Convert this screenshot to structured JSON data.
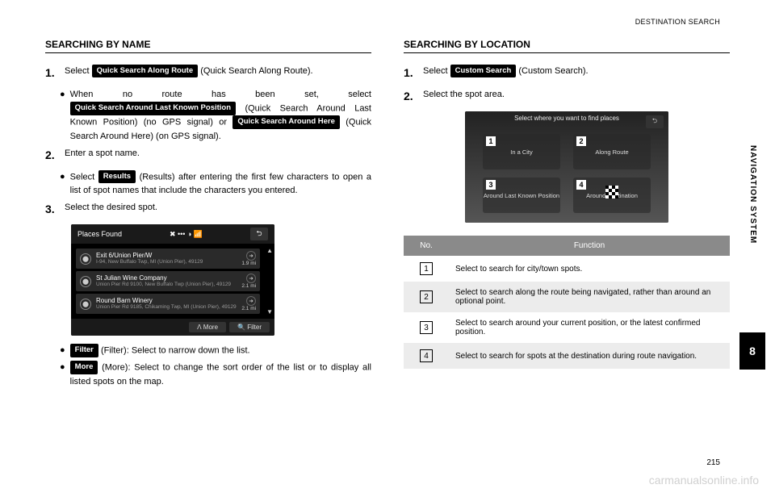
{
  "header": {
    "section": "DESTINATION SEARCH"
  },
  "side": {
    "label": "NAVIGATION SYSTEM",
    "tab": "8"
  },
  "page_number": "215",
  "watermark": "carmanualsonline.info",
  "left": {
    "title": "SEARCHING BY NAME",
    "step1_a": "Select ",
    "step1_btn": "Quick Search Along Route",
    "step1_b": " (Quick Search Along Route).",
    "sub1_a": "When no route has been set, select ",
    "sub1_btn1": "Quick Search Around Last Known Position",
    "sub1_b": " (Quick Search Around Last Known Position) (no GPS signal) or ",
    "sub1_btn2": "Quick Search Around Here",
    "sub1_c": " (Quick Search Around Here) (on GPS signal).",
    "step2": "Enter a spot name.",
    "sub2_a": "Select ",
    "sub2_btn": "Results",
    "sub2_b": " (Results) after entering the first few characters to open a list of spot names that include the characters you entered.",
    "step3": "Select the desired spot.",
    "screenshot": {
      "title": "Places Found",
      "items": [
        {
          "t1": "Exit 6/Union Pier/W",
          "t2": "I-94, New Buffalo Twp, MI (Union Pier), 49129",
          "dist": "1.9 mi"
        },
        {
          "t1": "St Julian Wine Company",
          "t2": "Union Pier Rd 9100, New Buffalo Twp (Union Pier), 49129",
          "dist": "2.1 mi"
        },
        {
          "t1": "Round Barn Winery",
          "t2": "Union Pier Rd 9185, Chikaming Twp, MI (Union Pier), 49129",
          "dist": "2.1 mi"
        }
      ],
      "more": "More",
      "filter": "Filter"
    },
    "sub3_btn": "Filter",
    "sub3_txt": " (Filter): Select to narrow down the list.",
    "sub4_btn": "More",
    "sub4_txt": " (More): Select to change the sort order of the list or to display all listed spots on the map."
  },
  "right": {
    "title": "SEARCHING BY LOCATION",
    "step1_a": "Select ",
    "step1_btn": "Custom Search",
    "step1_b": " (Custom Search).",
    "step2": "Select the spot area.",
    "screenshot": {
      "title": "Select where you want to find places",
      "q1": "In a City",
      "q2": "Along Route",
      "q3": "Around Last Known Position",
      "q4": "Around Destination"
    },
    "table": {
      "h_no": "No.",
      "h_fn": "Function",
      "rows": [
        {
          "n": "1",
          "fn": "Select to search for city/town spots."
        },
        {
          "n": "2",
          "fn": "Select to search along the route being navigated, rather than around an optional point."
        },
        {
          "n": "3",
          "fn": "Select to search around your current position, or the latest confirmed position."
        },
        {
          "n": "4",
          "fn": "Select to search for spots at the destination during route navigation."
        }
      ]
    }
  }
}
